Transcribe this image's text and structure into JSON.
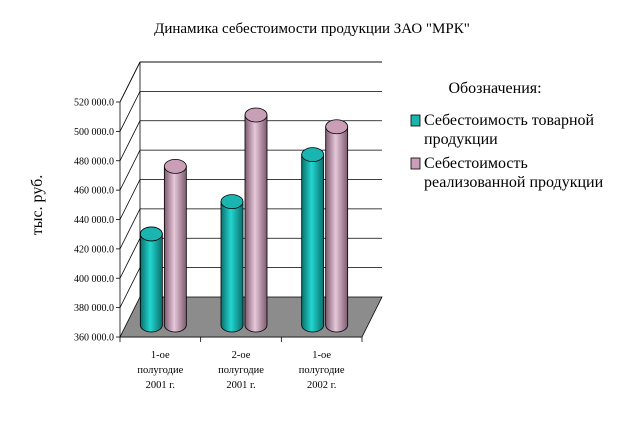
{
  "chart_data": {
    "type": "bar",
    "title": "Динамика себестоимости продукции ЗАО \"МРК\"",
    "ylabel": "тыс. руб.",
    "xlabel": "",
    "categories": [
      [
        "1-ое",
        "полугодие",
        "2001 г."
      ],
      [
        "2-ое",
        "полугодие",
        "2001 г."
      ],
      [
        "1-ое",
        "полугодие",
        "2002 г."
      ]
    ],
    "ylim": [
      360000,
      520000
    ],
    "ytick_labels": [
      "360 000.0",
      "380 000.0",
      "400 000.0",
      "420 000.0",
      "440 000.0",
      "460 000.0",
      "480 000.0",
      "500 000.0",
      "520 000.0"
    ],
    "series": [
      {
        "name": "Себестоимость товарной продукции",
        "values": [
          422000,
          444000,
          476000
        ],
        "color": "#1ab5b0"
      },
      {
        "name": "Себестоимость реализованной продукции",
        "values": [
          468000,
          503000,
          495000
        ],
        "color": "#c89fb6"
      }
    ],
    "legend": {
      "title": "Обозначения:",
      "position": "right",
      "entries": [
        [
          "Себестоимость товарной",
          "продукции"
        ],
        [
          "Себестоимость",
          "реализованной продукции"
        ]
      ]
    },
    "floor_color": "#8c8c8c",
    "style": "3d-cylinders",
    "grid": true
  }
}
